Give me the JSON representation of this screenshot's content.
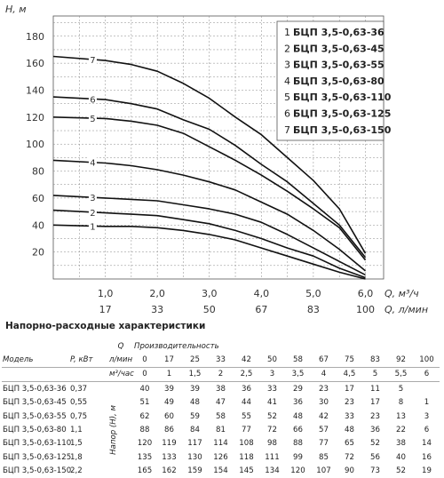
{
  "chart_data": {
    "type": "line",
    "ylabel": "H, м",
    "xlabel_primary": "Q, м³/ч",
    "xlabel_secondary": "Q, л/мин",
    "x_ticks_m3h": [
      "1,0",
      "2,0",
      "3,0",
      "4,0",
      "5,0",
      "6,0"
    ],
    "x_ticks_lmin": [
      "17",
      "33",
      "50",
      "67",
      "83",
      "100"
    ],
    "y_ticks": [
      "20",
      "40",
      "60",
      "80",
      "100",
      "120",
      "140",
      "160",
      "180"
    ],
    "xlim": [
      0,
      6.35
    ],
    "ylim": [
      0,
      195
    ],
    "grid": true,
    "legend_position": "top-right",
    "series": [
      {
        "label": "1",
        "name": "БЦП 3,5-0,63-36",
        "x": [
          0,
          1,
          1.5,
          2,
          2.5,
          3,
          3.5,
          4,
          4.5,
          5,
          5.5,
          6
        ],
        "y": [
          40,
          39,
          39,
          38,
          36,
          33,
          29,
          23,
          17,
          11,
          5,
          0
        ]
      },
      {
        "label": "2",
        "name": "БЦП 3,5-0,63-45",
        "x": [
          0,
          1,
          1.5,
          2,
          2.5,
          3,
          3.5,
          4,
          4.5,
          5,
          5.5,
          6
        ],
        "y": [
          51,
          49,
          48,
          47,
          44,
          41,
          36,
          30,
          23,
          17,
          8,
          1
        ]
      },
      {
        "label": "3",
        "name": "БЦП 3,5-0,63-55",
        "x": [
          0,
          1,
          1.5,
          2,
          2.5,
          3,
          3.5,
          4,
          4.5,
          5,
          5.5,
          6
        ],
        "y": [
          62,
          60,
          59,
          58,
          55,
          52,
          48,
          42,
          33,
          23,
          13,
          3
        ]
      },
      {
        "label": "4",
        "name": "БЦП 3,5-0,63-80",
        "x": [
          0,
          1,
          1.5,
          2,
          2.5,
          3,
          3.5,
          4,
          4.5,
          5,
          5.5,
          6
        ],
        "y": [
          88,
          86,
          84,
          81,
          77,
          72,
          66,
          57,
          48,
          36,
          22,
          6
        ]
      },
      {
        "label": "5",
        "name": "БЦП 3,5-0,63-110",
        "x": [
          0,
          1,
          1.5,
          2,
          2.5,
          3,
          3.5,
          4,
          4.5,
          5,
          5.5,
          6
        ],
        "y": [
          120,
          119,
          117,
          114,
          108,
          98,
          88,
          77,
          65,
          52,
          38,
          14
        ]
      },
      {
        "label": "6",
        "name": "БЦП 3,5-0,63-125",
        "x": [
          0,
          1,
          1.5,
          2,
          2.5,
          3,
          3.5,
          4,
          4.5,
          5,
          5.5,
          6
        ],
        "y": [
          135,
          133,
          130,
          126,
          118,
          111,
          99,
          85,
          72,
          56,
          40,
          16
        ]
      },
      {
        "label": "7",
        "name": "БЦП 3,5-0,63-150",
        "x": [
          0,
          1,
          1.5,
          2,
          2.5,
          3,
          3.5,
          4,
          4.5,
          5,
          5.5,
          6
        ],
        "y": [
          165,
          162,
          159,
          154,
          145,
          134,
          120,
          107,
          90,
          73,
          52,
          19
        ]
      }
    ]
  },
  "table": {
    "title": "Напорно-расходные характеристики",
    "q_label": "Q",
    "perf_label": "Производительность",
    "model_label": "Модель",
    "power_label": "P, кВт",
    "unit_lmin": "л/мин",
    "unit_m3h": "м³/час",
    "head_label": "Напор (H), м",
    "lmin": [
      "0",
      "17",
      "25",
      "33",
      "42",
      "50",
      "58",
      "67",
      "75",
      "83",
      "92",
      "100"
    ],
    "m3h": [
      "0",
      "1",
      "1,5",
      "2",
      "2,5",
      "3",
      "3,5",
      "4",
      "4,5",
      "5",
      "5,5",
      "6"
    ],
    "rows": [
      {
        "model": "БЦП 3,5-0,63-36",
        "power": "0,37",
        "h": [
          "40",
          "39",
          "39",
          "38",
          "36",
          "33",
          "29",
          "23",
          "17",
          "11",
          "5",
          ""
        ]
      },
      {
        "model": "БЦП 3,5-0,63-45",
        "power": "0,55",
        "h": [
          "51",
          "49",
          "48",
          "47",
          "44",
          "41",
          "36",
          "30",
          "23",
          "17",
          "8",
          "1"
        ]
      },
      {
        "model": "БЦП 3,5-0,63-55",
        "power": "0,75",
        "h": [
          "62",
          "60",
          "59",
          "58",
          "55",
          "52",
          "48",
          "42",
          "33",
          "23",
          "13",
          "3"
        ]
      },
      {
        "model": "БЦП 3,5-0,63-80",
        "power": "1,1",
        "h": [
          "88",
          "86",
          "84",
          "81",
          "77",
          "72",
          "66",
          "57",
          "48",
          "36",
          "22",
          "6"
        ]
      },
      {
        "model": "БЦП 3,5-0,63-110",
        "power": "1,5",
        "h": [
          "120",
          "119",
          "117",
          "114",
          "108",
          "98",
          "88",
          "77",
          "65",
          "52",
          "38",
          "14"
        ]
      },
      {
        "model": "БЦП 3,5-0,63-125",
        "power": "1,8",
        "h": [
          "135",
          "133",
          "130",
          "126",
          "118",
          "111",
          "99",
          "85",
          "72",
          "56",
          "40",
          "16"
        ]
      },
      {
        "model": "БЦП 3,5-0,63-150",
        "power": "2,2",
        "h": [
          "165",
          "162",
          "159",
          "154",
          "145",
          "134",
          "120",
          "107",
          "90",
          "73",
          "52",
          "19"
        ]
      }
    ]
  }
}
